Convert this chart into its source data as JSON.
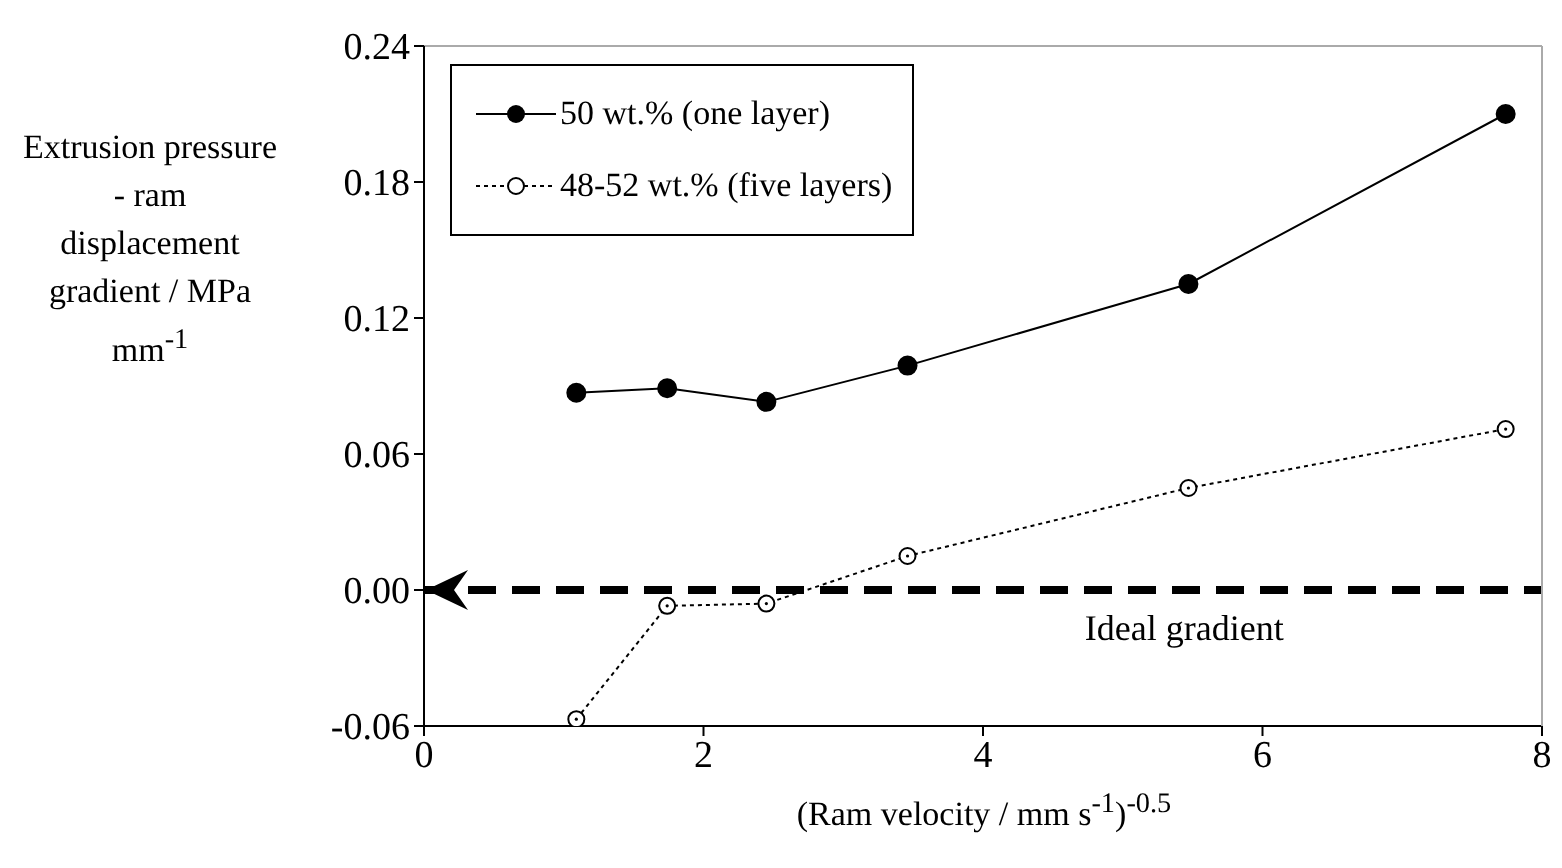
{
  "chart_data": {
    "type": "line",
    "xlabel": "(Ram velocity / mm s$^{-1}$)$^{-0.5}$",
    "ylabel": "Extrusion pressure - ram displacement gradient / MPa mm$^{-1}$",
    "x": [
      1.09,
      1.74,
      2.45,
      3.46,
      5.47,
      7.74
    ],
    "series": [
      {
        "name": "50 wt.% (one layer)",
        "color": "#000000",
        "line_style": "solid",
        "values": [
          0.087,
          0.089,
          0.083,
          0.099,
          0.135,
          0.21
        ]
      },
      {
        "name": "48-52 wt.% (five layers)",
        "color": "#000000",
        "line_style": "dotted",
        "values": [
          -0.057,
          -0.007,
          -0.006,
          0.015,
          0.045,
          0.071
        ]
      }
    ],
    "marker": "circle",
    "xlim": [
      0,
      8
    ],
    "xticks": [
      0,
      2,
      4,
      6,
      8
    ],
    "ylim": [
      -0.06,
      0.24
    ],
    "yticks": [
      -0.06,
      {
        "value": 0,
        "label": "0.00"
      },
      0.06,
      0.12,
      0.18,
      0.24
    ],
    "ref_lines": [
      {
        "axis": "y",
        "value": 0,
        "label": "Ideal gradient",
        "color": "#000000",
        "line_style": "dashed"
      }
    ],
    "grid": false,
    "legend": "top left"
  }
}
